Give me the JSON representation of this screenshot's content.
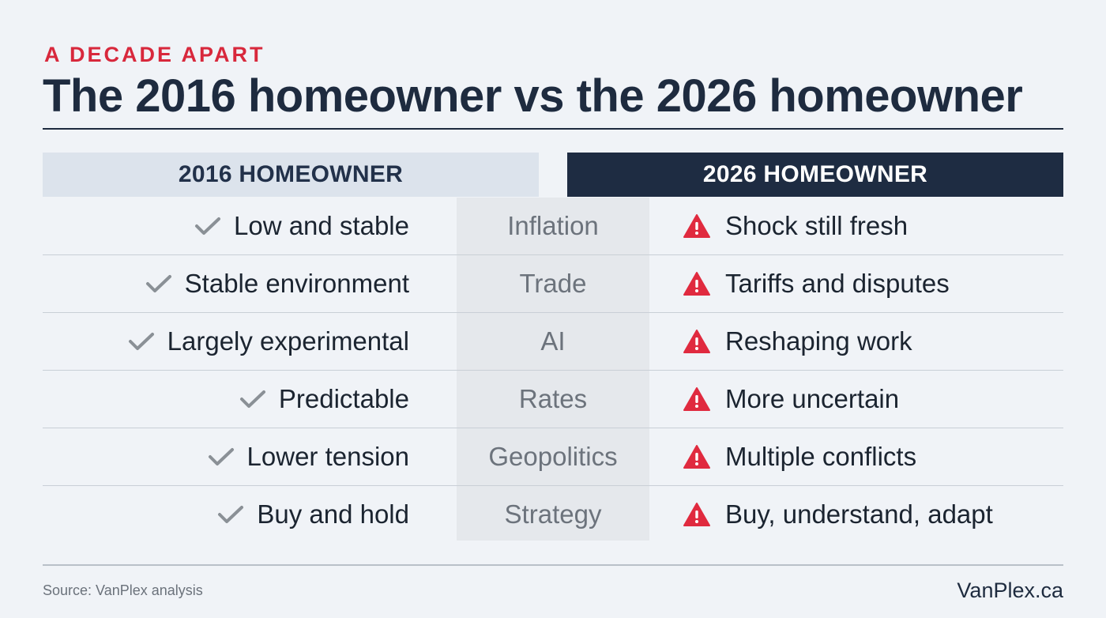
{
  "eyebrow": "A DECADE APART",
  "title": "The 2016 homeowner vs the 2026 homeowner",
  "headers": {
    "left": "2016 HOMEOWNER",
    "right": "2026 HOMEOWNER"
  },
  "rows": [
    {
      "left": "Low and stable",
      "category": "Inflation",
      "right": "Shock still fresh"
    },
    {
      "left": "Stable environment",
      "category": "Trade",
      "right": "Tariffs and disputes"
    },
    {
      "left": "Largely experimental",
      "category": "AI",
      "right": "Reshaping work"
    },
    {
      "left": "Predictable",
      "category": "Rates",
      "right": "More uncertain"
    },
    {
      "left": "Lower tension",
      "category": "Geopolitics",
      "right": "Multiple conflicts"
    },
    {
      "left": "Buy and hold",
      "category": "Strategy",
      "right": "Buy, understand, adapt"
    }
  ],
  "icons": {
    "left": "check-icon",
    "right": "warning-icon"
  },
  "colors": {
    "accent": "#d8283c",
    "navy": "#1e2c42",
    "check": "#8a9096"
  },
  "footer": {
    "source": "Source: VanPlex analysis",
    "brand": "VanPlex.ca"
  }
}
